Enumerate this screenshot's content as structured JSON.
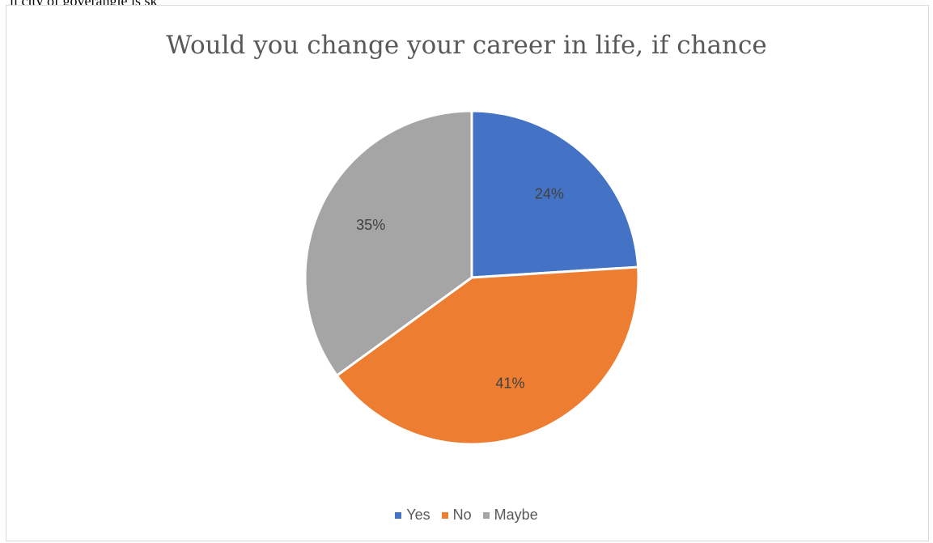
{
  "header_text": "ll city of goverangle is sk",
  "chart_data": {
    "type": "pie",
    "title": "Would you change your career in life, if chance",
    "categories": [
      "Yes",
      "No",
      "Maybe"
    ],
    "values": [
      24,
      41,
      35
    ],
    "labels": [
      "24%",
      "41%",
      "35%"
    ],
    "colors": [
      "#4472c4",
      "#ed7d31",
      "#a5a5a5"
    ],
    "legend_position": "bottom"
  }
}
